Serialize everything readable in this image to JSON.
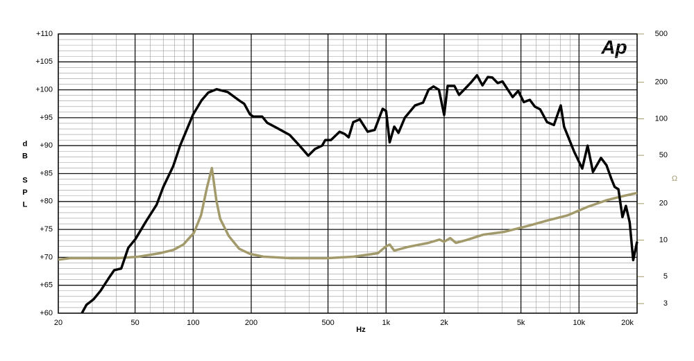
{
  "chart_data": {
    "type": "line",
    "logo": "Ap",
    "xlabel": "Hz",
    "ylabel": "dB SPL",
    "y2label": "Ω",
    "xscale": "log",
    "y2scale": "log",
    "grid": true,
    "minor_grid": true,
    "xlim": [
      20,
      20000
    ],
    "ylim": [
      60,
      110
    ],
    "y2lim": [
      2.5,
      500
    ],
    "xticks": [
      20,
      50,
      100,
      200,
      500,
      {
        "value": 1000,
        "label": "1k"
      },
      {
        "value": 2000,
        "label": "2k"
      },
      {
        "value": 5000,
        "label": "5k"
      },
      {
        "value": 10000,
        "label": "10k"
      },
      {
        "value": 20000,
        "label": "20k"
      }
    ],
    "yticks": [
      {
        "value": 60,
        "label": "+60"
      },
      {
        "value": 65,
        "label": "+65"
      },
      {
        "value": 70,
        "label": "+70"
      },
      {
        "value": 75,
        "label": "+75"
      },
      {
        "value": 80,
        "label": "+80"
      },
      {
        "value": 85,
        "label": "+85"
      },
      {
        "value": 90,
        "label": "+90"
      },
      {
        "value": 95,
        "label": "+95"
      },
      {
        "value": 100,
        "label": "+100"
      },
      {
        "value": 105,
        "label": "+105"
      },
      {
        "value": 110,
        "label": "+110"
      }
    ],
    "y2ticks": [
      3,
      5,
      10,
      20,
      50,
      100,
      200,
      500
    ],
    "series": [
      {
        "color": "#000000",
        "x": [
          26.5,
          28,
          30.5,
          33.1,
          36.9,
          39,
          42.4,
          46.1,
          50.3,
          56.9,
          64.6,
          70,
          78.8,
          85.6,
          91.7,
          100,
          110.5,
          119.8,
          132.4,
          151,
          173,
          184,
          197,
          205,
          228,
          242,
          274,
          317,
          356,
          395,
          428,
          466,
          484,
          518,
          574,
          610,
          640,
          676,
          731,
          803,
          872,
          960,
          1000,
          1044,
          1103,
          1160,
          1250,
          1412,
          1555,
          1660,
          1760,
          1880,
          2000,
          2085,
          2260,
          2390,
          2600,
          2770,
          2960,
          3160,
          3370,
          3550,
          3790,
          4010,
          4530,
          4840,
          5170,
          5560,
          5900,
          6290,
          6830,
          7410,
          8040,
          8370,
          9440,
          10400,
          11080,
          11810,
          13000,
          13880,
          14700,
          15300,
          16000,
          16800,
          17500,
          18300,
          19100,
          20000
        ],
        "values": [
          60,
          61.5,
          62.5,
          64,
          66.5,
          67.7,
          68,
          71.7,
          73.3,
          76.4,
          79.4,
          82.6,
          86.3,
          90,
          92.5,
          95.6,
          98.1,
          99.5,
          100.1,
          99.6,
          98.1,
          97.5,
          95.6,
          95.2,
          95.2,
          94.1,
          93.1,
          91.9,
          90,
          88.2,
          89.4,
          90,
          91,
          91,
          92.5,
          92.1,
          91.5,
          94.2,
          94.7,
          92.5,
          92.8,
          96.6,
          96.2,
          90.6,
          93.4,
          92.3,
          95,
          97.2,
          97.7,
          100,
          100.6,
          100,
          95.5,
          100.7,
          100.7,
          99.1,
          100.4,
          101.4,
          102.6,
          100.8,
          102.3,
          102.2,
          101.2,
          101.5,
          98.7,
          99.8,
          97.8,
          98.2,
          97,
          96.5,
          94.2,
          93.7,
          97.2,
          93.4,
          88.9,
          85.9,
          90,
          85.3,
          87.8,
          86.5,
          84.1,
          82.6,
          82.2,
          77.2,
          79.2,
          76.3,
          69.5,
          72.8
        ]
      },
      {
        "color": "#a39a6c",
        "axis": "y2",
        "x": [
          20,
          23,
          40,
          52,
          67,
          79,
          89,
          101,
          110,
          118,
          125,
          132,
          138,
          153,
          173,
          197,
          232,
          322,
          488,
          676,
          906,
          1000,
          1044,
          1103,
          1300,
          1660,
          1890,
          2000,
          2150,
          2300,
          2600,
          3200,
          4100,
          5340,
          6830,
          8720,
          11080,
          14000,
          16600,
          20000
        ],
        "values": [
          6.9,
          7.1,
          7.1,
          7.3,
          7.8,
          8.3,
          9.2,
          11.5,
          16.1,
          27.2,
          39.3,
          21.2,
          15,
          10.8,
          8.5,
          7.7,
          7.3,
          7.1,
          7.1,
          7.3,
          7.8,
          8.9,
          9.2,
          8.2,
          8.8,
          9.5,
          10.1,
          9.7,
          10.4,
          9.5,
          10,
          11.1,
          11.7,
          13,
          14.5,
          16,
          18.8,
          21.4,
          22.9,
          24.5
        ]
      }
    ]
  }
}
